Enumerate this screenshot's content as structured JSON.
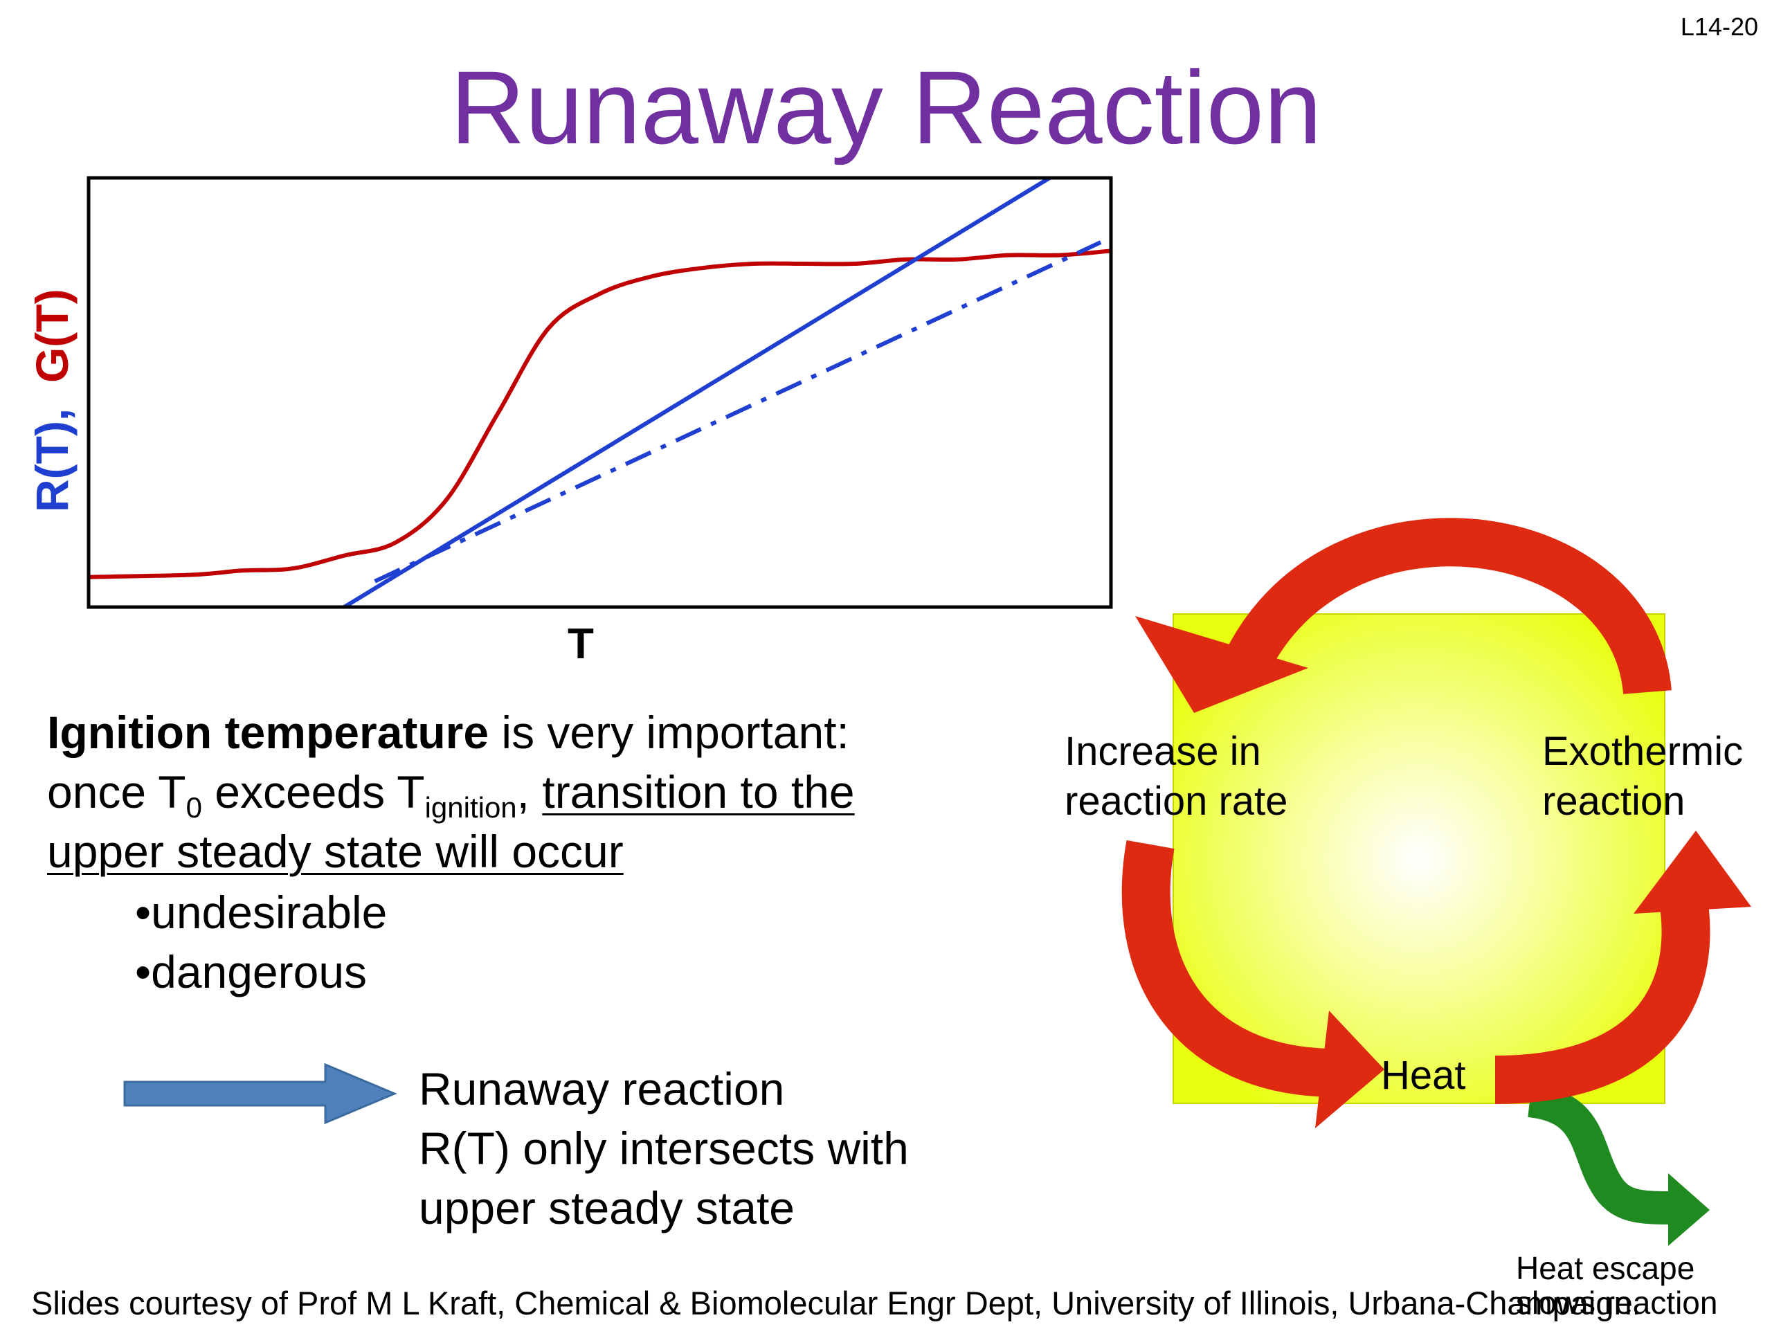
{
  "slide_number": "L14-20",
  "title": "Runaway Reaction",
  "chart_data": {
    "type": "line",
    "xlabel": "T",
    "ylabel_parts": [
      "R(T),",
      "G(T)"
    ],
    "series": [
      {
        "name": "G(T)",
        "style": "solid",
        "color": "#c00000",
        "x": [
          0.0,
          0.1,
          0.15,
          0.2,
          0.25,
          0.3,
          0.35,
          0.4,
          0.45,
          0.5,
          0.55,
          0.6,
          0.65,
          0.7,
          0.75,
          0.8,
          0.85,
          0.9,
          0.95,
          1.0
        ],
        "y": [
          0.07,
          0.075,
          0.085,
          0.09,
          0.12,
          0.15,
          0.25,
          0.45,
          0.65,
          0.73,
          0.77,
          0.79,
          0.8,
          0.8,
          0.8,
          0.81,
          0.81,
          0.82,
          0.82,
          0.83
        ]
      },
      {
        "name": "R(T)",
        "style": "solid",
        "color": "#1f3fd1",
        "x": [
          0.25,
          0.94
        ],
        "y": [
          0.0,
          1.0
        ]
      },
      {
        "name": "R(T) ignition",
        "style": "dashdot",
        "color": "#1f3fd1",
        "x": [
          0.28,
          0.99
        ],
        "y": [
          0.06,
          0.85
        ]
      }
    ],
    "xlim": [
      0,
      1
    ],
    "ylim": [
      0,
      1
    ],
    "grid": false
  },
  "paragraph": {
    "bold_term": "Ignition temperature",
    "rest_line1": " is very important:",
    "once": "once T",
    "sub0": "0",
    "exceeds": " exceeds T",
    "sub_ignition": "ignition",
    "comma": ", ",
    "underlined_a": "transition to the",
    "underlined_b": "upper steady state will occur"
  },
  "bullets": [
    "undesirable",
    "dangerous"
  ],
  "runaway_lines": [
    "Runaway reaction",
    "R(T) only intersects with",
    "upper steady state"
  ],
  "cycle": {
    "increase": [
      "Increase in",
      "reaction rate"
    ],
    "exothermic": [
      "Exothermic",
      "reaction"
    ],
    "heat": "Heat",
    "heat_escape": "Heat escape",
    "slows": "slows reaction"
  },
  "footer": "Slides courtesy of Prof M L Kraft, Chemical & Biomolecular Engr Dept, University of Illinois, Urbana-Champaign.",
  "colors": {
    "title": "#7030a0",
    "rt": "#1f3fd1",
    "gt": "#c00000",
    "cycle_arrow": "#dd2a10",
    "heat_box": "#e8ff10",
    "escape_arrow": "#1f8a1f",
    "block_arrow": "#4f81bd"
  }
}
